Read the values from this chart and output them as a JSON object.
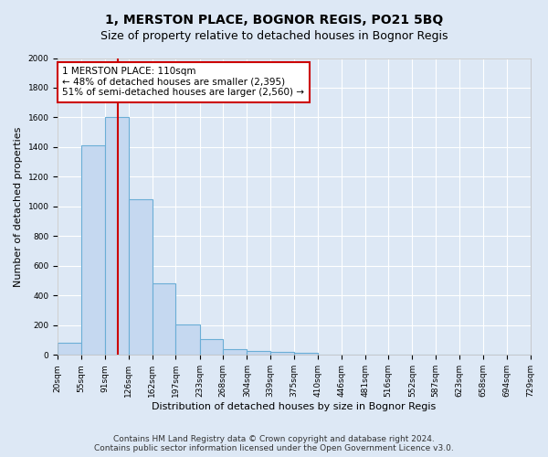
{
  "title": "1, MERSTON PLACE, BOGNOR REGIS, PO21 5BQ",
  "subtitle": "Size of property relative to detached houses in Bognor Regis",
  "xlabel": "Distribution of detached houses by size in Bognor Regis",
  "ylabel": "Number of detached properties",
  "bar_edges": [
    20,
    55,
    91,
    126,
    162,
    197,
    233,
    268,
    304,
    339,
    375,
    410,
    446,
    481,
    516,
    552,
    587,
    623,
    658,
    694,
    729
  ],
  "bar_heights": [
    80,
    1415,
    1600,
    1050,
    480,
    205,
    105,
    40,
    25,
    20,
    15,
    0,
    0,
    0,
    0,
    0,
    0,
    0,
    0,
    0
  ],
  "bar_color": "#c5d8f0",
  "bar_edge_color": "#6baed6",
  "background_color": "#dde8f5",
  "grid_color": "#ffffff",
  "annotation_box_text": "1 MERSTON PLACE: 110sqm\n← 48% of detached houses are smaller (2,395)\n51% of semi-detached houses are larger (2,560) →",
  "annotation_box_color": "#ffffff",
  "annotation_box_edge_color": "#cc0000",
  "property_line_x": 110,
  "property_line_color": "#cc0000",
  "ylim": [
    0,
    2000
  ],
  "yticks": [
    0,
    200,
    400,
    600,
    800,
    1000,
    1200,
    1400,
    1600,
    1800,
    2000
  ],
  "tick_labels": [
    "20sqm",
    "55sqm",
    "91sqm",
    "126sqm",
    "162sqm",
    "197sqm",
    "233sqm",
    "268sqm",
    "304sqm",
    "339sqm",
    "375sqm",
    "410sqm",
    "446sqm",
    "481sqm",
    "516sqm",
    "552sqm",
    "587sqm",
    "623sqm",
    "658sqm",
    "694sqm",
    "729sqm"
  ],
  "footer_text": "Contains HM Land Registry data © Crown copyright and database right 2024.\nContains public sector information licensed under the Open Government Licence v3.0.",
  "title_fontsize": 10,
  "subtitle_fontsize": 9,
  "xlabel_fontsize": 8,
  "ylabel_fontsize": 8,
  "tick_fontsize": 6.5,
  "annotation_fontsize": 7.5,
  "footer_fontsize": 6.5
}
